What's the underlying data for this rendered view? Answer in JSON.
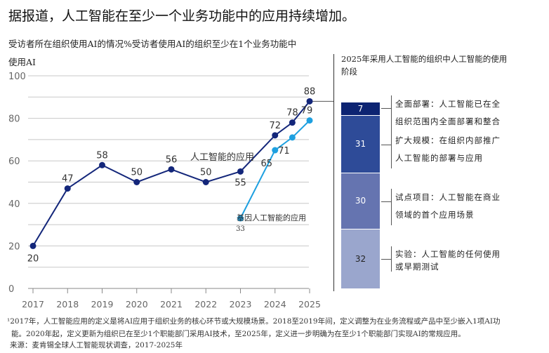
{
  "title": "据报道，人工智能在至少一个业务功能中的应用持续增加。",
  "subtitle": "受访者所在组织使用AI的情况%受访者使用AI的组织至少在1个业务功能中使用AI",
  "chart_data": [
    {
      "type": "line",
      "x": [
        "2017",
        "2018",
        "2019",
        "2020",
        "2021",
        "2022",
        "2023",
        "2024",
        "2025"
      ],
      "ylim": [
        0,
        100
      ],
      "yticks": [
        0,
        20,
        40,
        60,
        80,
        100
      ],
      "grid": true,
      "series": [
        {
          "name": "人工智能的应用",
          "values": [
            20,
            47,
            58,
            50,
            56,
            50,
            55,
            72,
            78,
            88
          ],
          "x": [
            2017,
            2018,
            2019,
            2020,
            2021,
            2022,
            2023,
            2024,
            2024.5,
            2025
          ],
          "labels": [
            "20",
            "47",
            "58",
            "50",
            "56",
            "50",
            "55",
            "72",
            "78",
            "88"
          ],
          "color": "#13267a"
        },
        {
          "name": "基因人工智能的应用",
          "values": [
            33,
            65,
            71,
            79
          ],
          "x": [
            2023,
            2024,
            2024.5,
            2025
          ],
          "labels": [
            "33",
            "65",
            "71",
            "79"
          ],
          "color": "#1ea0e0"
        }
      ]
    },
    {
      "type": "bar",
      "stacked": true,
      "title": "2025年采用人工智能的组织中人工智能的使用阶段",
      "segments": [
        {
          "value": 7,
          "label": "全面部署：人工智能已在全组织范围内全面部署和整合",
          "color": "#0d2472"
        },
        {
          "value": 31,
          "label": "扩大规模：在组织内部推广人工智能的部署与应用",
          "color": "#2e4b98"
        },
        {
          "value": 30,
          "label": "试点项目：人工智能在商业领域的首个应用场景",
          "color": "#6574b0"
        },
        {
          "value": 32,
          "label": "实验：人工智能的任何使用或早期测试",
          "color": "#9aa6cd"
        }
      ]
    }
  ],
  "footnote1": "¹2017年，人工智能应用的定义是将AI应用于组织业务的核心环节或大规模场景。2018至2019年间，定义调整为在业务流程或产品中至少嵌入1项AI功",
  "footnote2": "能。2020年起，定义更新为组织已在至少1个职能部门采用AI技术，至2025年，定义进一步明确为在至少1个职能部门实现AI的常规应用。",
  "source": "来源：麦肯锡全球人工智能现状调查，2017-2025年"
}
